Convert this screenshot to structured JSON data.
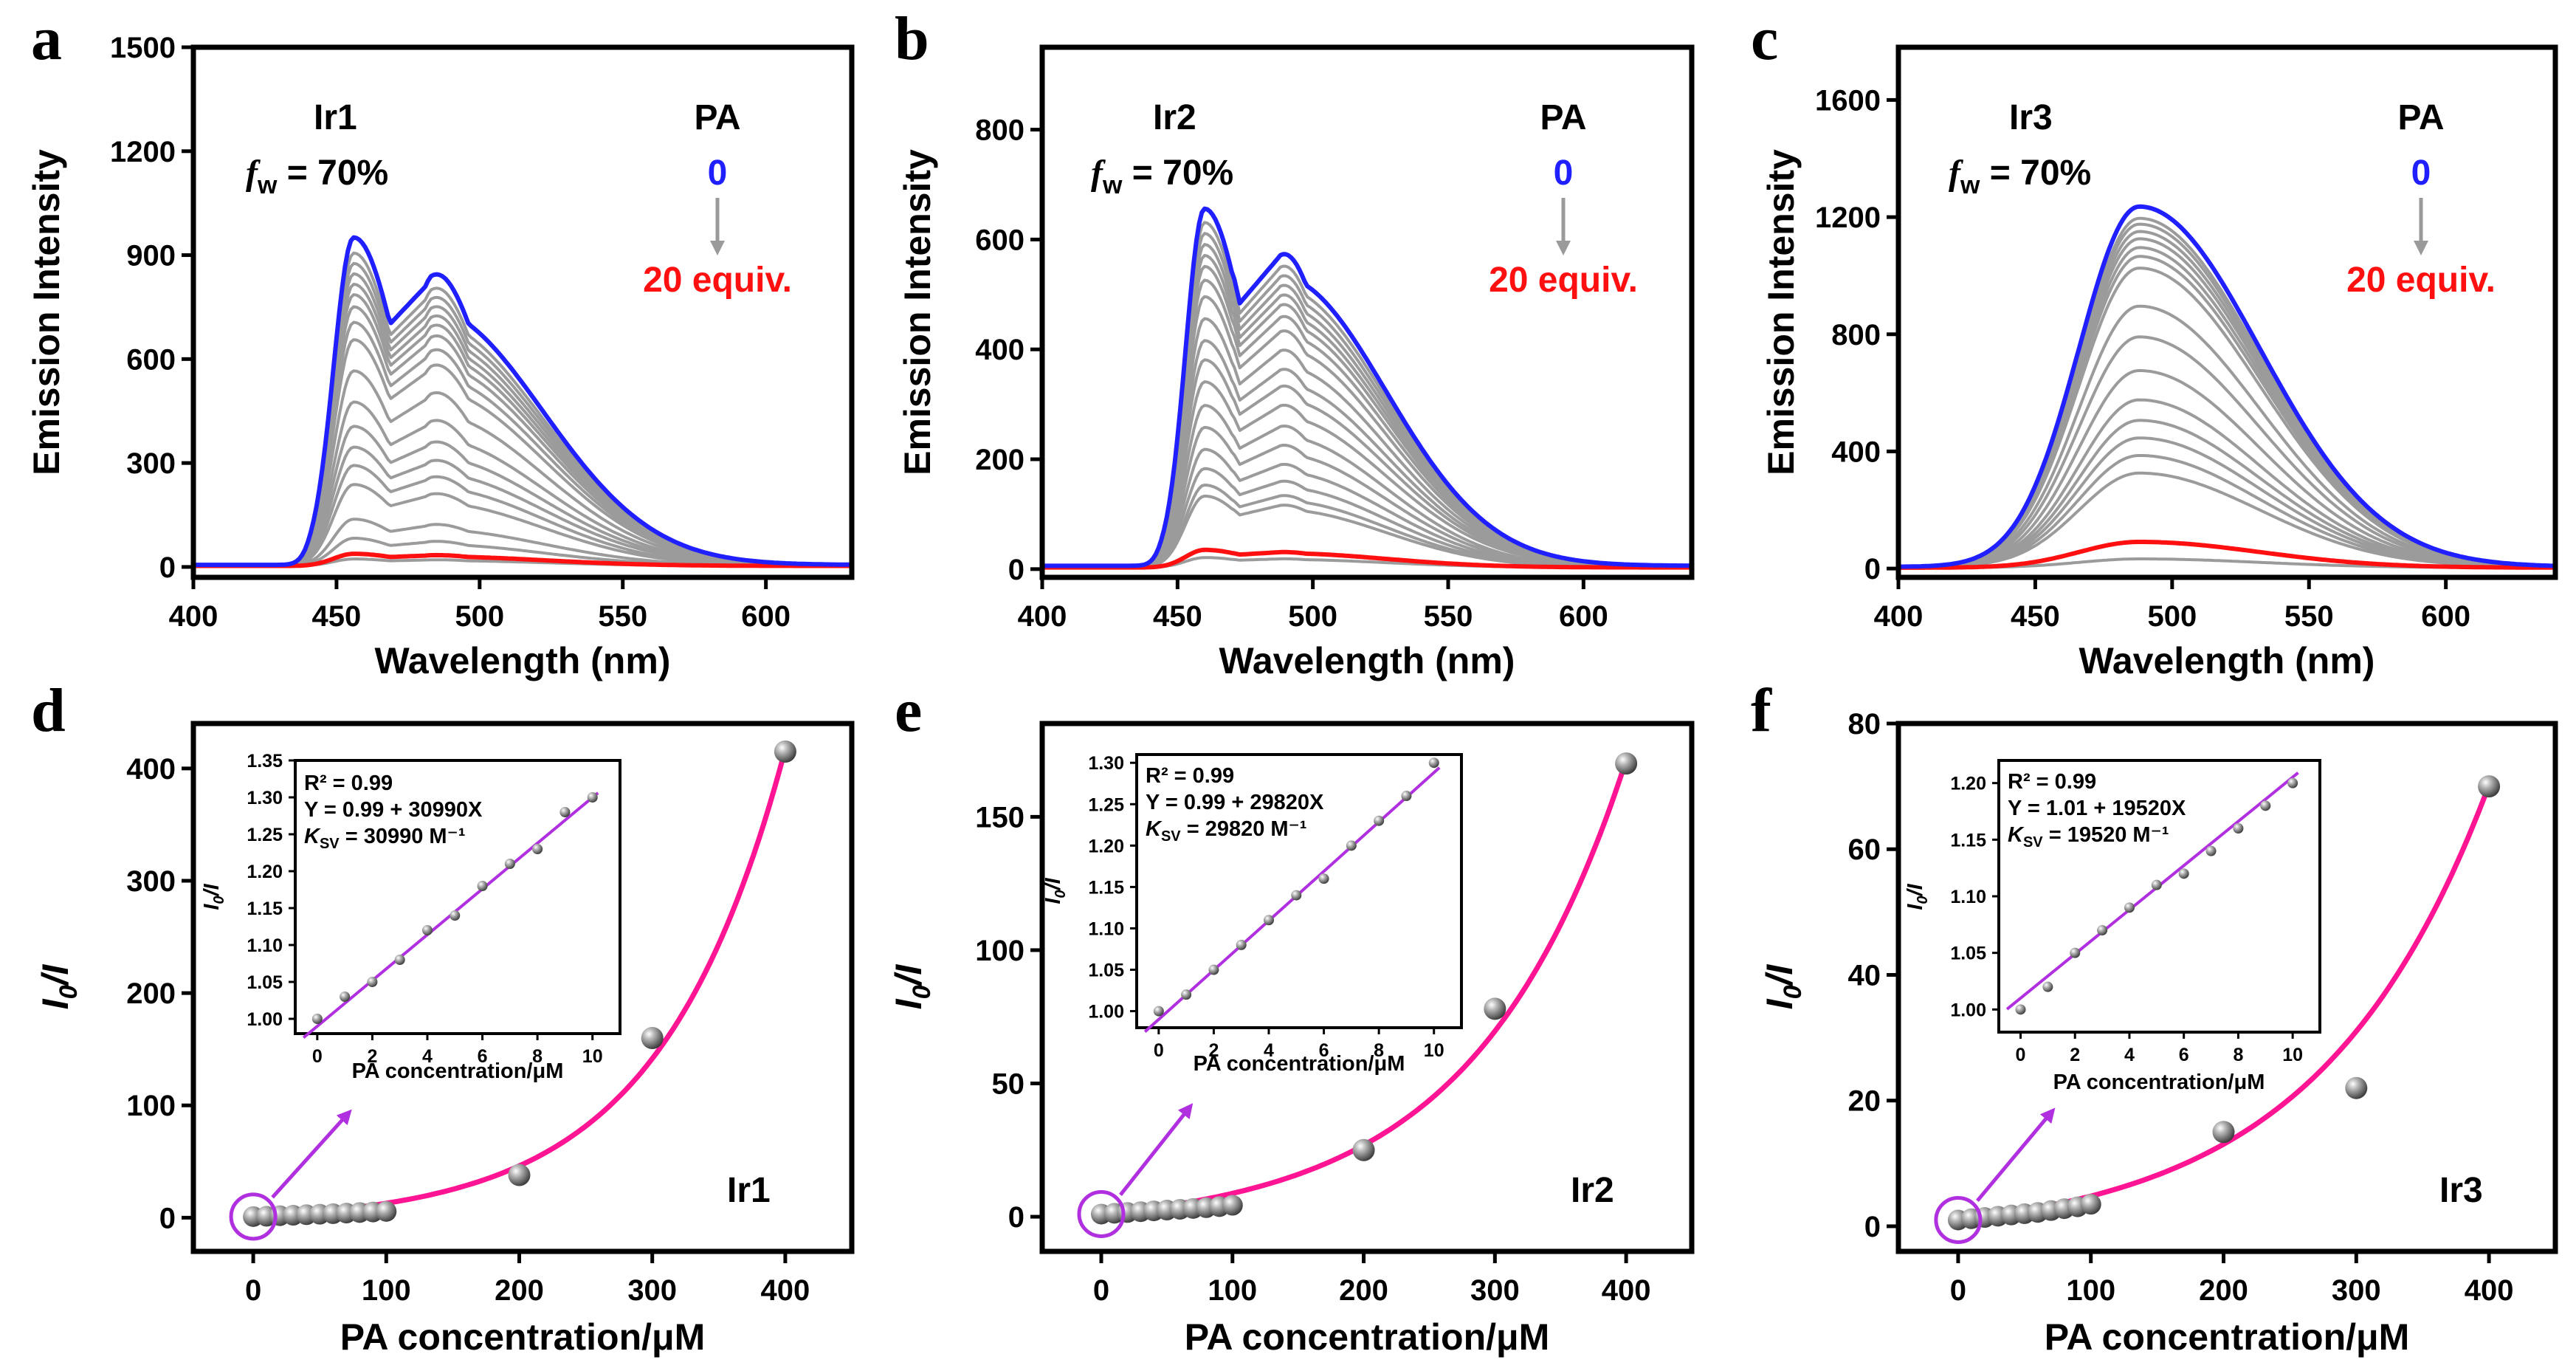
{
  "figure": {
    "panels": [
      {
        "letter": "a",
        "compound": "Ir1",
        "fw": "f",
        "fw_sub": "w",
        "fw_rest": " = 70%",
        "pa": "PA",
        "start": "0",
        "end": "20 equiv."
      },
      {
        "letter": "b",
        "compound": "Ir2",
        "fw": "f",
        "fw_sub": "w",
        "fw_rest": " = 70%",
        "pa": "PA",
        "start": "0",
        "end": "20 equiv."
      },
      {
        "letter": "c",
        "compound": "Ir3",
        "fw": "f",
        "fw_sub": "w",
        "fw_rest": " = 70%",
        "pa": "PA",
        "start": "0",
        "end": "20 equiv."
      },
      {
        "letter": "d",
        "compound": "Ir1",
        "r2": "R² = 0.99",
        "eq": "Y = 0.99 + 30990X",
        "ksv_k": "K",
        "ksv_sub": "SV",
        "ksv_rest": " = 30990 M⁻¹"
      },
      {
        "letter": "e",
        "compound": "Ir2",
        "r2": "R² = 0.99",
        "eq": "Y = 0.99 + 29820X",
        "ksv_k": "K",
        "ksv_sub": "SV",
        "ksv_rest": " = 29820 M⁻¹"
      },
      {
        "letter": "f",
        "compound": "Ir3",
        "r2": "R² = 0.99",
        "eq": "Y = 1.01 + 19520X",
        "ksv_k": "K",
        "ksv_sub": "SV",
        "ksv_rest": " = 19520 M⁻¹"
      }
    ],
    "colors": {
      "initial": "#1f1fff",
      "final": "#ff1010",
      "intermediate": "#9b9b9b",
      "fit": "#ff1493",
      "inset_fit": "#b030e0",
      "marker": "#8a8a8a",
      "arrow": "#9a9a9a",
      "callout": "#b030e0"
    }
  },
  "chart_data": [
    {
      "id": "a",
      "type": "line",
      "title": "",
      "xlabel": "Wavelength (nm)",
      "ylabel": "Emission Intensity",
      "xlim": [
        400,
        630
      ],
      "ylim": [
        -30,
        1500
      ],
      "xticks": [
        400,
        450,
        500,
        550,
        600
      ],
      "yticks": [
        0,
        300,
        600,
        900,
        1200,
        1500
      ],
      "peaks": [
        [
          456,
          1
        ],
        [
          483,
          0.78
        ]
      ],
      "peak_width": [
        7,
        16
      ],
      "shoulder": [
        [
          510,
          0.22
        ]
      ],
      "onset": 442,
      "series": [
        {
          "name": "0 equiv PA",
          "max": 945
        },
        {
          "name": "intermediate",
          "max": 900
        },
        {
          "name": "intermediate",
          "max": 870
        },
        {
          "name": "intermediate",
          "max": 840
        },
        {
          "name": "intermediate",
          "max": 810
        },
        {
          "name": "intermediate",
          "max": 780
        },
        {
          "name": "intermediate",
          "max": 745
        },
        {
          "name": "intermediate",
          "max": 700
        },
        {
          "name": "intermediate",
          "max": 650
        },
        {
          "name": "intermediate",
          "max": 560
        },
        {
          "name": "intermediate",
          "max": 470
        },
        {
          "name": "intermediate",
          "max": 400
        },
        {
          "name": "intermediate",
          "max": 340
        },
        {
          "name": "intermediate",
          "max": 290
        },
        {
          "name": "intermediate",
          "max": 235
        },
        {
          "name": "intermediate",
          "max": 135
        },
        {
          "name": "intermediate",
          "max": 80
        },
        {
          "name": "20 equiv PA",
          "max": 35
        },
        {
          "name": "intermediate",
          "max": 20
        }
      ]
    },
    {
      "id": "b",
      "type": "line",
      "title": "",
      "xlabel": "Wavelength (nm)",
      "ylabel": "Emission Intensity",
      "xlim": [
        400,
        640
      ],
      "ylim": [
        -15,
        950
      ],
      "xticks": [
        400,
        450,
        500,
        550,
        600
      ],
      "yticks": [
        0,
        200,
        400,
        600,
        800
      ],
      "peaks": [
        [
          460,
          1
        ],
        [
          488,
          0.81
        ]
      ],
      "peak_width": [
        7,
        16
      ],
      "shoulder": [
        [
          522,
          0.2
        ]
      ],
      "onset": 445,
      "series": [
        {
          "name": "0 equiv PA",
          "max": 650
        },
        {
          "name": "intermediate",
          "max": 625
        },
        {
          "name": "intermediate",
          "max": 605
        },
        {
          "name": "intermediate",
          "max": 585
        },
        {
          "name": "intermediate",
          "max": 565
        },
        {
          "name": "intermediate",
          "max": 545
        },
        {
          "name": "intermediate",
          "max": 520
        },
        {
          "name": "intermediate",
          "max": 490
        },
        {
          "name": "intermediate",
          "max": 450
        },
        {
          "name": "intermediate",
          "max": 410
        },
        {
          "name": "intermediate",
          "max": 375
        },
        {
          "name": "intermediate",
          "max": 335
        },
        {
          "name": "intermediate",
          "max": 295
        },
        {
          "name": "intermediate",
          "max": 255
        },
        {
          "name": "intermediate",
          "max": 215
        },
        {
          "name": "intermediate",
          "max": 180
        },
        {
          "name": "intermediate",
          "max": 150
        },
        {
          "name": "intermediate",
          "max": 130
        },
        {
          "name": "20 equiv PA",
          "max": 32
        },
        {
          "name": "intermediate",
          "max": 18
        }
      ]
    },
    {
      "id": "c",
      "type": "line",
      "title": "",
      "xlabel": "Wavelength (nm)",
      "ylabel": "Emission Intensity",
      "xlim": [
        400,
        640
      ],
      "ylim": [
        -30,
        1780
      ],
      "xticks": [
        400,
        450,
        500,
        550,
        600
      ],
      "yticks": [
        0,
        400,
        800,
        1200,
        1600
      ],
      "peaks": [
        [
          488,
          1
        ]
      ],
      "peak_width": [
        22,
        44
      ],
      "shoulder": [],
      "onset": 0,
      "series": [
        {
          "name": "0 equiv PA",
          "max": 1230
        },
        {
          "name": "intermediate",
          "max": 1190
        },
        {
          "name": "intermediate",
          "max": 1170
        },
        {
          "name": "intermediate",
          "max": 1145
        },
        {
          "name": "intermediate",
          "max": 1120
        },
        {
          "name": "intermediate",
          "max": 1090
        },
        {
          "name": "intermediate",
          "max": 1060
        },
        {
          "name": "intermediate",
          "max": 1020
        },
        {
          "name": "intermediate",
          "max": 890
        },
        {
          "name": "intermediate",
          "max": 785
        },
        {
          "name": "intermediate",
          "max": 670
        },
        {
          "name": "intermediate",
          "max": 570
        },
        {
          "name": "intermediate",
          "max": 500
        },
        {
          "name": "intermediate",
          "max": 440
        },
        {
          "name": "intermediate",
          "max": 380
        },
        {
          "name": "intermediate",
          "max": 320
        },
        {
          "name": "20 equiv PA",
          "max": 88
        },
        {
          "name": "intermediate",
          "max": 30
        }
      ]
    },
    {
      "id": "d",
      "type": "scatter",
      "title": "",
      "xlabel": "PA concentration/μM",
      "ylabel": "I0/I",
      "xlim": [
        -45,
        450
      ],
      "ylim": [
        -30,
        440
      ],
      "xticks": [
        0,
        100,
        200,
        300,
        400
      ],
      "yticks": [
        0,
        100,
        200,
        300,
        400
      ],
      "x": [
        0,
        10,
        20,
        30,
        40,
        50,
        60,
        70,
        80,
        90,
        100,
        200,
        300,
        400
      ],
      "y": [
        1.0,
        1.3,
        1.8,
        2.2,
        2.7,
        3.1,
        3.6,
        4.1,
        4.6,
        5.1,
        5.6,
        38,
        160,
        415
      ],
      "fit": {
        "a": 2.2,
        "b": 21.6,
        "c": 94
      },
      "inset": {
        "xlabel": "PA concentration/μM",
        "ylabel": "I0/I",
        "xlim": [
          -0.8,
          11
        ],
        "ylim": [
          0.98,
          1.35
        ],
        "xticks": [
          0,
          2,
          4,
          6,
          8,
          10
        ],
        "yticks": [
          1.0,
          1.05,
          1.1,
          1.15,
          1.2,
          1.25,
          1.3,
          1.35
        ],
        "x": [
          0,
          1,
          2,
          3,
          4,
          5,
          6,
          7,
          8,
          9,
          10
        ],
        "y": [
          1.0,
          1.03,
          1.05,
          1.08,
          1.12,
          1.14,
          1.18,
          1.21,
          1.23,
          1.28,
          1.3
        ],
        "fit": {
          "intercept": 0.99,
          "slope": 0.03099
        }
      }
    },
    {
      "id": "e",
      "type": "scatter",
      "title": "",
      "xlabel": "PA concentration/μM",
      "ylabel": "I0/I",
      "xlim": [
        -45,
        450
      ],
      "ylim": [
        -13,
        185
      ],
      "xticks": [
        0,
        100,
        200,
        300,
        400
      ],
      "yticks": [
        0,
        50,
        100,
        150
      ],
      "x": [
        0,
        10,
        20,
        30,
        40,
        50,
        60,
        70,
        80,
        90,
        100,
        200,
        300,
        400
      ],
      "y": [
        1.0,
        1.3,
        1.6,
        1.9,
        2.2,
        2.5,
        2.8,
        3.1,
        3.4,
        3.8,
        4.3,
        25,
        78,
        170
      ],
      "fit": {
        "a": 1.2,
        "b": 16.8,
        "c": 115
      },
      "inset": {
        "xlabel": "PA concentration/μM",
        "ylabel": "I0/I",
        "xlim": [
          -0.8,
          11
        ],
        "ylim": [
          0.98,
          1.31
        ],
        "xticks": [
          0,
          2,
          4,
          6,
          8,
          10
        ],
        "yticks": [
          1.0,
          1.05,
          1.1,
          1.15,
          1.2,
          1.25,
          1.3
        ],
        "x": [
          0,
          1,
          2,
          3,
          4,
          5,
          6,
          7,
          8,
          9,
          10
        ],
        "y": [
          1.0,
          1.02,
          1.05,
          1.08,
          1.11,
          1.14,
          1.16,
          1.2,
          1.23,
          1.26,
          1.3
        ],
        "fit": {
          "intercept": 0.99,
          "slope": 0.02982
        }
      }
    },
    {
      "id": "f",
      "type": "scatter",
      "title": "",
      "xlabel": "PA concentration/μM",
      "ylabel": "I0/I",
      "xlim": [
        -45,
        450
      ],
      "ylim": [
        -4,
        80
      ],
      "xticks": [
        0,
        100,
        200,
        300,
        400
      ],
      "yticks": [
        0,
        20,
        40,
        60,
        80
      ],
      "x": [
        0,
        10,
        20,
        30,
        40,
        50,
        60,
        70,
        80,
        90,
        100,
        200,
        300,
        400
      ],
      "y": [
        1.0,
        1.2,
        1.4,
        1.6,
        1.8,
        2.0,
        2.2,
        2.5,
        2.8,
        3.1,
        3.5,
        15,
        22,
        70
      ],
      "fit": {
        "a": 0.2,
        "b": 8.8,
        "c": 128
      },
      "inset": {
        "xlabel": "PA concentration/μM",
        "ylabel": "I0/I",
        "xlim": [
          -0.8,
          11
        ],
        "ylim": [
          0.98,
          1.22
        ],
        "xticks": [
          0,
          2,
          4,
          6,
          8,
          10
        ],
        "yticks": [
          1.0,
          1.05,
          1.1,
          1.15,
          1.2
        ],
        "x": [
          0,
          1,
          2,
          3,
          4,
          5,
          6,
          7,
          8,
          9,
          10
        ],
        "y": [
          1.0,
          1.02,
          1.05,
          1.07,
          1.09,
          1.11,
          1.12,
          1.14,
          1.16,
          1.18,
          1.2
        ],
        "fit": {
          "intercept": 1.01,
          "slope": 0.01952
        }
      }
    }
  ]
}
